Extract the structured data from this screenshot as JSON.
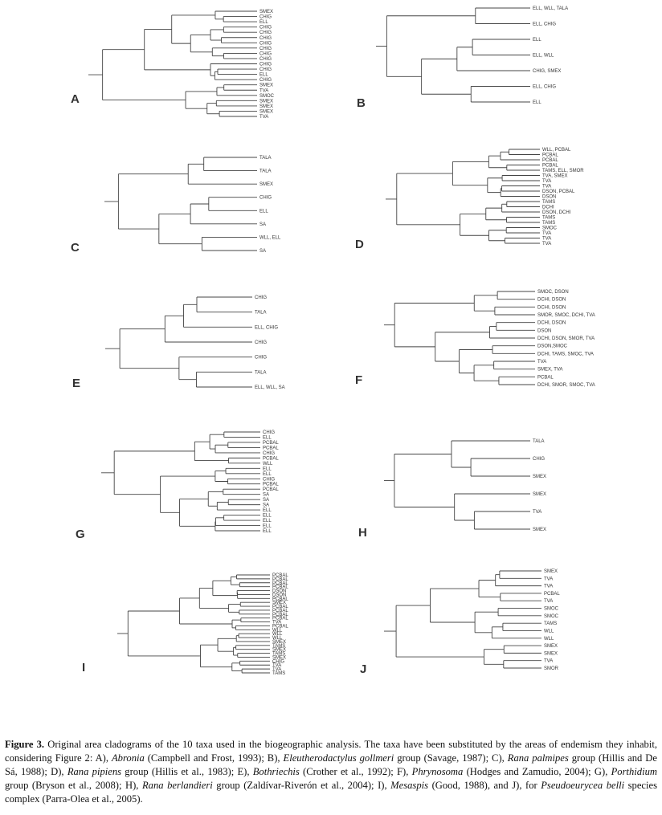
{
  "figure": {
    "panels": [
      {
        "label": "A",
        "leaves": [
          "SMEX",
          "CHIG",
          "ELL",
          "CHIG",
          "CHIG",
          "CHIG",
          "CHIG",
          "CHIG",
          "CHIG",
          "CHIG",
          "CHIG",
          "CHIG",
          "ELL",
          "CHIG",
          "SMEX",
          "TVA",
          "SMOC",
          "SMEX",
          "SMEX",
          "SMEX",
          "TVA"
        ]
      },
      {
        "label": "B",
        "leaves": [
          "ELL, WLL, TALA",
          "ELL, CHIG",
          "ELL",
          "ELL, WLL",
          "CHIG, SMEX",
          "ELL, CHIG",
          "ELL"
        ]
      },
      {
        "label": "C",
        "leaves": [
          "TALA",
          "TALA",
          "SMEX",
          "CHIG",
          "ELL",
          "SA",
          "WLL, ELL",
          "SA"
        ]
      },
      {
        "label": "D",
        "leaves": [
          "WLL, PCBAL",
          "PCBAL",
          "PCBAL",
          "PCBAL",
          "TAMS, ELL, SMOR",
          "TVA, SMEX",
          "TVA",
          "TVA",
          "DSON, PCBAL",
          "DSON",
          "TAMS",
          "DCHI",
          "DSON, DCHI",
          "TAMS",
          "TAMS",
          "SMOC",
          "TVA",
          "TVA",
          "TVA"
        ]
      },
      {
        "label": "E",
        "leaves": [
          "CHIG",
          "TALA",
          "ELL, CHIG",
          "CHIG",
          "CHIG",
          "TALA",
          "ELL, WLL, SA"
        ]
      },
      {
        "label": "F",
        "leaves": [
          "SMOC, DSON",
          "DCHI, DSON",
          "DCHI, DSON",
          "SMOR, SMOC, DCHI, TVA",
          "DCHI, DSON",
          "DSON",
          "DCHI, DSON, SMOR, TVA",
          "DSON,SMOC",
          "DCHI, TAMS, SMOC, TVA",
          "TVA",
          "SMEX, TVA",
          "PCBAL",
          "DCHI, SMOR, SMOC, TVA"
        ]
      },
      {
        "label": "G",
        "leaves": [
          "CHIG",
          "ELL",
          "PCBAL",
          "PCBAL",
          "CHIG",
          "PCBAL",
          "WLL",
          "ELL",
          "ELL",
          "CHIG",
          "PCBAL",
          "PCBAL",
          "SA",
          "SA",
          "SA",
          "ELL",
          "ELL",
          "ELL",
          "ELL",
          "ELL"
        ]
      },
      {
        "label": "H",
        "leaves": [
          "TALA",
          "CHIG",
          "SMEX",
          "SMEX",
          "TVA",
          "SMEX"
        ]
      },
      {
        "label": "I",
        "leaves": [
          "PCBAL",
          "PCBAL",
          "PCBAL",
          "PCBAL",
          "DSON",
          "DSON",
          "PCBAL",
          "SMEX",
          "PCBAL",
          "PCBAL",
          "PCBAL",
          "PCBAL",
          "TVA",
          "PCBAL",
          "WLL",
          "WLL",
          "WLL",
          "SMEX",
          "TAMS",
          "SMEX",
          "TAMS",
          "SMEX",
          "CHIG",
          "TVA",
          "TVA",
          "TAMS"
        ]
      },
      {
        "label": "J",
        "leaves": [
          "SMEX",
          "TVA",
          "TVA",
          "PCBAL",
          "TVA",
          "SMOC",
          "SMOC",
          "TAMS",
          "WLL",
          "WLL",
          "SMEX",
          "SMEX",
          "TVA",
          "SMOR"
        ]
      }
    ]
  },
  "caption": {
    "label": "Figure 3.",
    "parts": [
      {
        "t": " Original area cladograms of the 10 taxa used in the biogeographic analysis. The taxa have been substituted by the areas of endemism they inhabit, considering Figure 2: A), ",
        "i": false
      },
      {
        "t": "Abronia",
        "i": true
      },
      {
        "t": " (Campbell and Frost, 1993); B), ",
        "i": false
      },
      {
        "t": "Eleutherodactylus gollmeri",
        "i": true
      },
      {
        "t": " group (Savage, 1987); C), ",
        "i": false
      },
      {
        "t": "Rana palmipes",
        "i": true
      },
      {
        "t": " group (Hillis and De Sá, 1988); D), ",
        "i": false
      },
      {
        "t": "Rana pipiens",
        "i": true
      },
      {
        "t": " group (Hillis et al., 1983); E), ",
        "i": false
      },
      {
        "t": "Bothriechis",
        "i": true
      },
      {
        "t": " (Crother et al., 1992); F), ",
        "i": false
      },
      {
        "t": "Phrynosoma",
        "i": true
      },
      {
        "t": " (Hodges and Zamudio, 2004); G), ",
        "i": false
      },
      {
        "t": "Porthidium",
        "i": true
      },
      {
        "t": " group (Bryson et al., 2008); H), ",
        "i": false
      },
      {
        "t": "Rana berlandieri",
        "i": true
      },
      {
        "t": " group (Zaldívar-Riverón et al., 2004); I), ",
        "i": false
      },
      {
        "t": "Mesaspis",
        "i": true
      },
      {
        "t": " (Good, 1988), and J), for ",
        "i": false
      },
      {
        "t": "Pseudoeurycea belli",
        "i": true
      },
      {
        "t": " species complex (Parra-Olea et al., 2005).",
        "i": false
      }
    ]
  }
}
